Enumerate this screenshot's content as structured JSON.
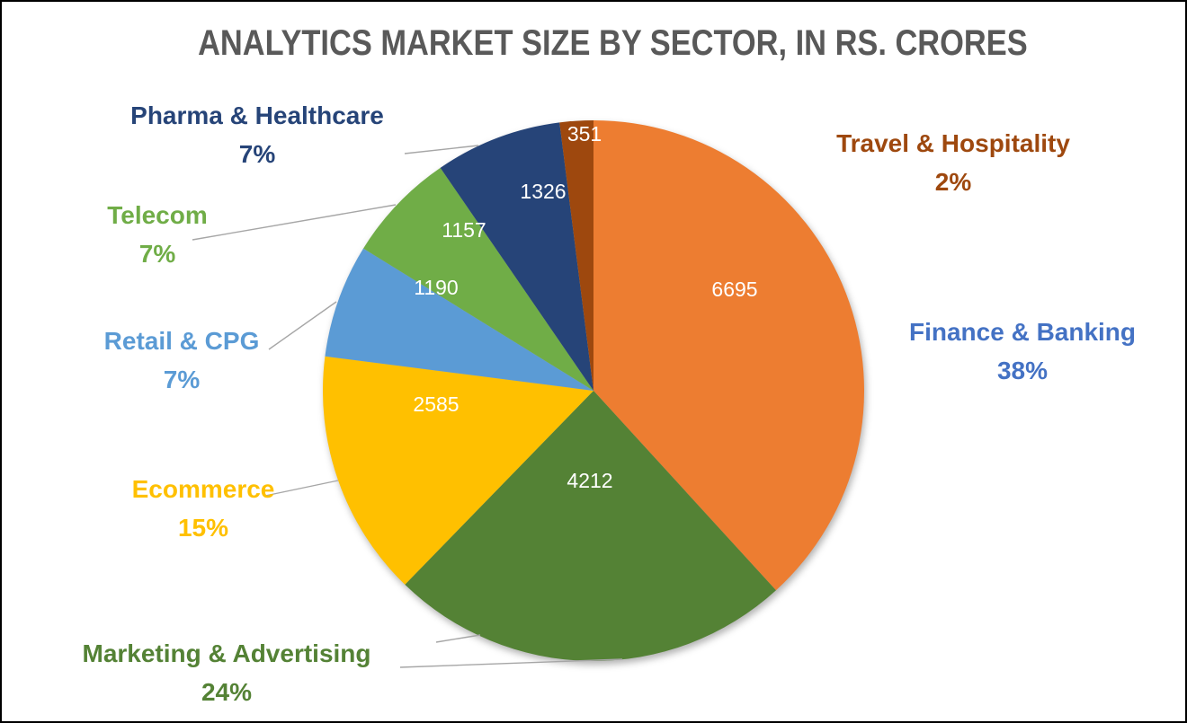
{
  "chart_data": {
    "type": "pie",
    "title": "ANALYTICS MARKET SIZE BY SECTOR, IN RS. CRORES",
    "title_color": "#595959",
    "unit": "Rs. Crores",
    "legend_position": "outside-callout-labels",
    "grid": false,
    "start_at": "12 o'clock",
    "direction": "clockwise",
    "value_labels_color": "#FFFFFF",
    "leader_line_color": "#A6A6A6",
    "slices": [
      {
        "name": "Finance & Banking",
        "value": 6695,
        "percent": "38%",
        "slice_color": "#ED7D31",
        "label_color": "#4472C4"
      },
      {
        "name": "Marketing & Advertising",
        "value": 4212,
        "percent": "24%",
        "slice_color": "#548235",
        "label_color": "#548235"
      },
      {
        "name": "Ecommerce",
        "value": 2585,
        "percent": "15%",
        "slice_color": "#FFC000",
        "label_color": "#FFC000"
      },
      {
        "name": "Retail & CPG",
        "value": 1190,
        "percent": "7%",
        "slice_color": "#5B9BD5",
        "label_color": "#5B9BD5"
      },
      {
        "name": "Telecom",
        "value": 1157,
        "percent": "7%",
        "slice_color": "#70AD47",
        "label_color": "#70AD47"
      },
      {
        "name": "Pharma & Healthcare",
        "value": 1326,
        "percent": "7%",
        "slice_color": "#264478",
        "label_color": "#264478"
      },
      {
        "name": "Travel & Hospitality",
        "value": 351,
        "percent": "2%",
        "slice_color": "#9E480E",
        "label_color": "#9E480E"
      }
    ]
  }
}
